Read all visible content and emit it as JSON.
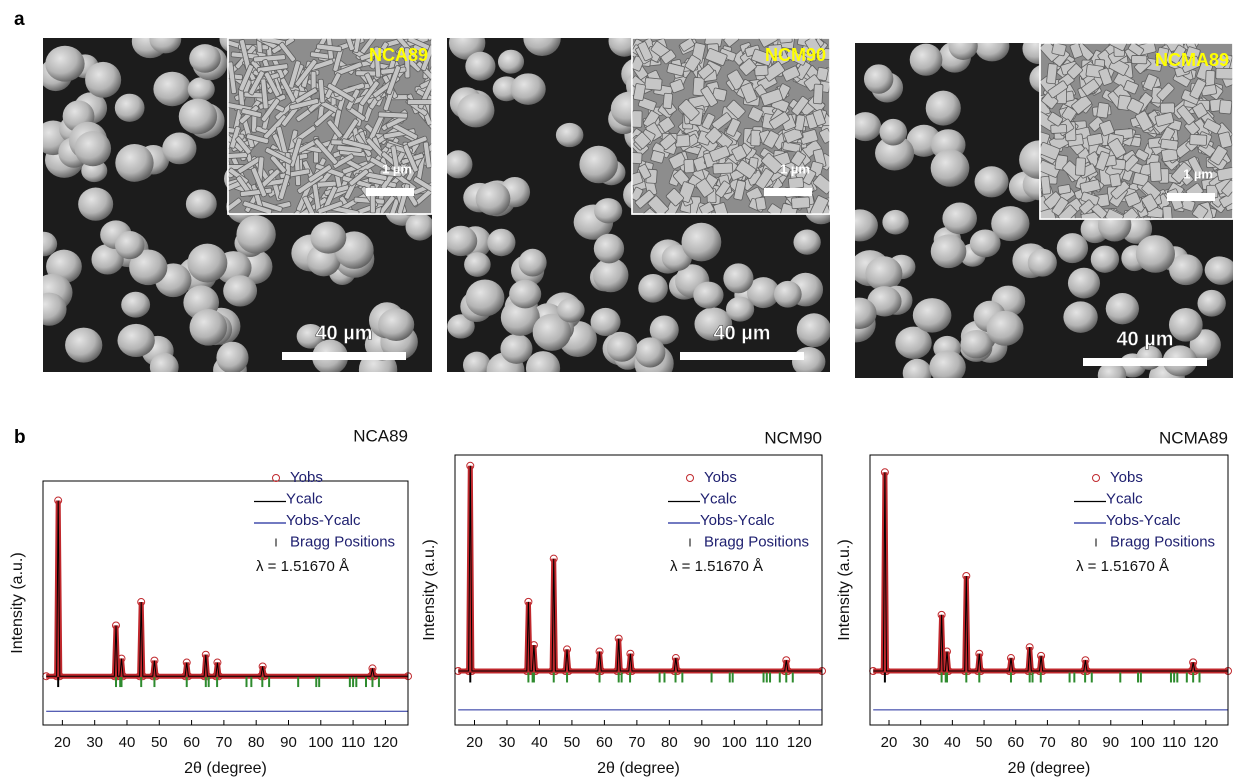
{
  "panel_labels": [
    "a",
    "b"
  ],
  "sem_images": [
    {
      "label": "NCA89",
      "inset_scale": "1 µm",
      "scale": "40 µm"
    },
    {
      "label": "NCM90",
      "inset_scale": "1 µm",
      "scale": "40 µm"
    },
    {
      "label": "NCMA89",
      "inset_scale": "1 µm",
      "scale": "40 µm"
    }
  ],
  "chart_data": [
    {
      "type": "xrd",
      "title": "NCA89",
      "x_label": "2θ (degree)",
      "y_label": "Intensity (a.u.)",
      "annotation": "λ = 1.51670  Å",
      "xlim": [
        14,
        127
      ],
      "ylim": [
        -25,
        100
      ],
      "xticks": [
        20,
        30,
        40,
        50,
        60,
        70,
        80,
        90,
        100,
        110,
        120
      ],
      "series": [
        {
          "name": "Yobs",
          "color": "#c0282d",
          "x": [
            15,
            18.2,
            18.7,
            19.2,
            36.1,
            36.6,
            37.1,
            37.8,
            38.3,
            38.8,
            43.9,
            44.4,
            44.9,
            48,
            48.5,
            49,
            58,
            58.5,
            59,
            63.9,
            64.4,
            64.9,
            67.5,
            68,
            68.5,
            81.5,
            82,
            82.5,
            115.5,
            116,
            116.5,
            127
          ],
          "values": [
            0,
            0,
            90,
            0,
            0,
            26,
            0,
            0,
            9,
            0,
            0,
            38,
            0,
            0,
            8,
            0,
            0,
            7,
            0,
            0,
            11,
            0,
            0,
            7,
            0,
            0,
            5,
            0,
            0,
            4,
            0,
            0
          ]
        },
        {
          "name": "Ycalc",
          "color": "#000000",
          "x": [
            15,
            18.2,
            18.7,
            19.2,
            36.1,
            36.6,
            37.1,
            37.8,
            38.3,
            38.8,
            43.9,
            44.4,
            44.9,
            48,
            48.5,
            49,
            58,
            58.5,
            59,
            63.9,
            64.4,
            64.9,
            67.5,
            68,
            68.5,
            81.5,
            82,
            82.5,
            115.5,
            116,
            116.5,
            127
          ],
          "values": [
            0,
            0,
            90,
            0,
            0,
            26,
            0,
            0,
            9,
            0,
            0,
            38,
            0,
            0,
            8,
            0,
            0,
            7,
            0,
            0,
            11,
            0,
            0,
            7,
            0,
            0,
            5,
            0,
            0,
            4,
            0,
            0
          ]
        },
        {
          "name": "Yobs-Ycalc",
          "color": "#1f2a9c",
          "x": [
            15,
            127
          ],
          "values": [
            -18,
            -18
          ]
        },
        {
          "name": "Bragg Positions",
          "color": "#2e8b2e",
          "x": [
            18.7,
            36.6,
            37.9,
            38.3,
            44.4,
            48.5,
            58.5,
            64.4,
            65.3,
            67.9,
            77,
            78.5,
            81.9,
            84,
            93,
            98.6,
            99.5,
            109,
            110,
            111,
            114,
            116,
            118
          ],
          "values": [
            -3,
            -3,
            -3,
            -3,
            -3,
            -3,
            -3,
            -3,
            -3,
            -3,
            -3,
            -3,
            -3,
            -3,
            -3,
            -3,
            -3,
            -3,
            -3,
            -3,
            -3,
            -3,
            -3
          ]
        }
      ]
    },
    {
      "type": "xrd",
      "title": "NCM90",
      "x_label": "2θ (degree)",
      "y_label": "Intensity (a.u.)",
      "annotation": "λ = 1.51670  Å",
      "xlim": [
        14,
        127
      ],
      "ylim": [
        -25,
        100
      ],
      "xticks": [
        20,
        30,
        40,
        50,
        60,
        70,
        80,
        90,
        100,
        110,
        120
      ],
      "series": [
        {
          "name": "Yobs",
          "color": "#c0282d",
          "x": [
            15,
            18.2,
            18.7,
            19.2,
            36.1,
            36.6,
            37.1,
            37.8,
            38.3,
            38.8,
            43.9,
            44.4,
            44.9,
            48,
            48.5,
            49,
            58,
            58.5,
            59,
            63.9,
            64.4,
            64.9,
            67.5,
            68,
            68.5,
            81.5,
            82,
            82.5,
            115.5,
            116,
            116.5,
            127
          ],
          "values": [
            0,
            0,
            95,
            0,
            0,
            32,
            0,
            0,
            12,
            0,
            0,
            52,
            0,
            0,
            10,
            0,
            0,
            9,
            0,
            0,
            15,
            0,
            0,
            8,
            0,
            0,
            6,
            0,
            0,
            5,
            0,
            0
          ]
        },
        {
          "name": "Ycalc",
          "color": "#000000",
          "x": [
            15,
            18.2,
            18.7,
            19.2,
            36.1,
            36.6,
            37.1,
            37.8,
            38.3,
            38.8,
            43.9,
            44.4,
            44.9,
            48,
            48.5,
            49,
            58,
            58.5,
            59,
            63.9,
            64.4,
            64.9,
            67.5,
            68,
            68.5,
            81.5,
            82,
            82.5,
            115.5,
            116,
            116.5,
            127
          ],
          "values": [
            0,
            0,
            95,
            0,
            0,
            32,
            0,
            0,
            12,
            0,
            0,
            52,
            0,
            0,
            10,
            0,
            0,
            9,
            0,
            0,
            15,
            0,
            0,
            8,
            0,
            0,
            6,
            0,
            0,
            5,
            0,
            0
          ]
        },
        {
          "name": "Yobs-Ycalc",
          "color": "#1f2a9c",
          "x": [
            15,
            127
          ],
          "values": [
            -18,
            -18
          ]
        },
        {
          "name": "Bragg Positions",
          "color": "#2e8b2e",
          "x": [
            18.7,
            36.6,
            37.9,
            38.3,
            44.4,
            48.5,
            58.5,
            64.4,
            65.3,
            67.9,
            77,
            78.5,
            81.9,
            84,
            93,
            98.6,
            99.5,
            109,
            110,
            111,
            114,
            116,
            118
          ],
          "values": [
            -3,
            -3,
            -3,
            -3,
            -3,
            -3,
            -3,
            -3,
            -3,
            -3,
            -3,
            -3,
            -3,
            -3,
            -3,
            -3,
            -3,
            -3,
            -3,
            -3,
            -3,
            -3,
            -3
          ]
        }
      ]
    },
    {
      "type": "xrd",
      "title": "NCMA89",
      "x_label": "2θ (degree)",
      "y_label": "Intensity (a.u.)",
      "annotation": "λ = 1.51670  Å",
      "xlim": [
        14,
        127
      ],
      "ylim": [
        -25,
        100
      ],
      "xticks": [
        20,
        30,
        40,
        50,
        60,
        70,
        80,
        90,
        100,
        110,
        120
      ],
      "series": [
        {
          "name": "Yobs",
          "color": "#c0282d",
          "x": [
            15,
            18.2,
            18.7,
            19.2,
            36.1,
            36.6,
            37.1,
            37.8,
            38.3,
            38.8,
            43.9,
            44.4,
            44.9,
            48,
            48.5,
            49,
            58,
            58.5,
            59,
            63.9,
            64.4,
            64.9,
            67.5,
            68,
            68.5,
            81.5,
            82,
            82.5,
            115.5,
            116,
            116.5,
            127
          ],
          "values": [
            0,
            0,
            92,
            0,
            0,
            26,
            0,
            0,
            9,
            0,
            0,
            44,
            0,
            0,
            8,
            0,
            0,
            6,
            0,
            0,
            11,
            0,
            0,
            7,
            0,
            0,
            5,
            0,
            0,
            4,
            0,
            0
          ]
        },
        {
          "name": "Ycalc",
          "color": "#000000",
          "x": [
            15,
            18.2,
            18.7,
            19.2,
            36.1,
            36.6,
            37.1,
            37.8,
            38.3,
            38.8,
            43.9,
            44.4,
            44.9,
            48,
            48.5,
            49,
            58,
            58.5,
            59,
            63.9,
            64.4,
            64.9,
            67.5,
            68,
            68.5,
            81.5,
            82,
            82.5,
            115.5,
            116,
            116.5,
            127
          ],
          "values": [
            0,
            0,
            92,
            0,
            0,
            26,
            0,
            0,
            9,
            0,
            0,
            44,
            0,
            0,
            8,
            0,
            0,
            6,
            0,
            0,
            11,
            0,
            0,
            7,
            0,
            0,
            5,
            0,
            0,
            4,
            0,
            0
          ]
        },
        {
          "name": "Yobs-Ycalc",
          "color": "#1f2a9c",
          "x": [
            15,
            127
          ],
          "values": [
            -18,
            -18
          ]
        },
        {
          "name": "Bragg Positions",
          "color": "#2e8b2e",
          "x": [
            18.7,
            36.6,
            37.9,
            38.3,
            44.4,
            48.5,
            58.5,
            64.4,
            65.3,
            67.9,
            77,
            78.5,
            81.9,
            84,
            93,
            98.6,
            99.5,
            109,
            110,
            111,
            114,
            116,
            118
          ],
          "values": [
            -3,
            -3,
            -3,
            -3,
            -3,
            -3,
            -3,
            -3,
            -3,
            -3,
            -3,
            -3,
            -3,
            -3,
            -3,
            -3,
            -3,
            -3,
            -3,
            -3,
            -3,
            -3,
            -3
          ]
        }
      ]
    }
  ]
}
